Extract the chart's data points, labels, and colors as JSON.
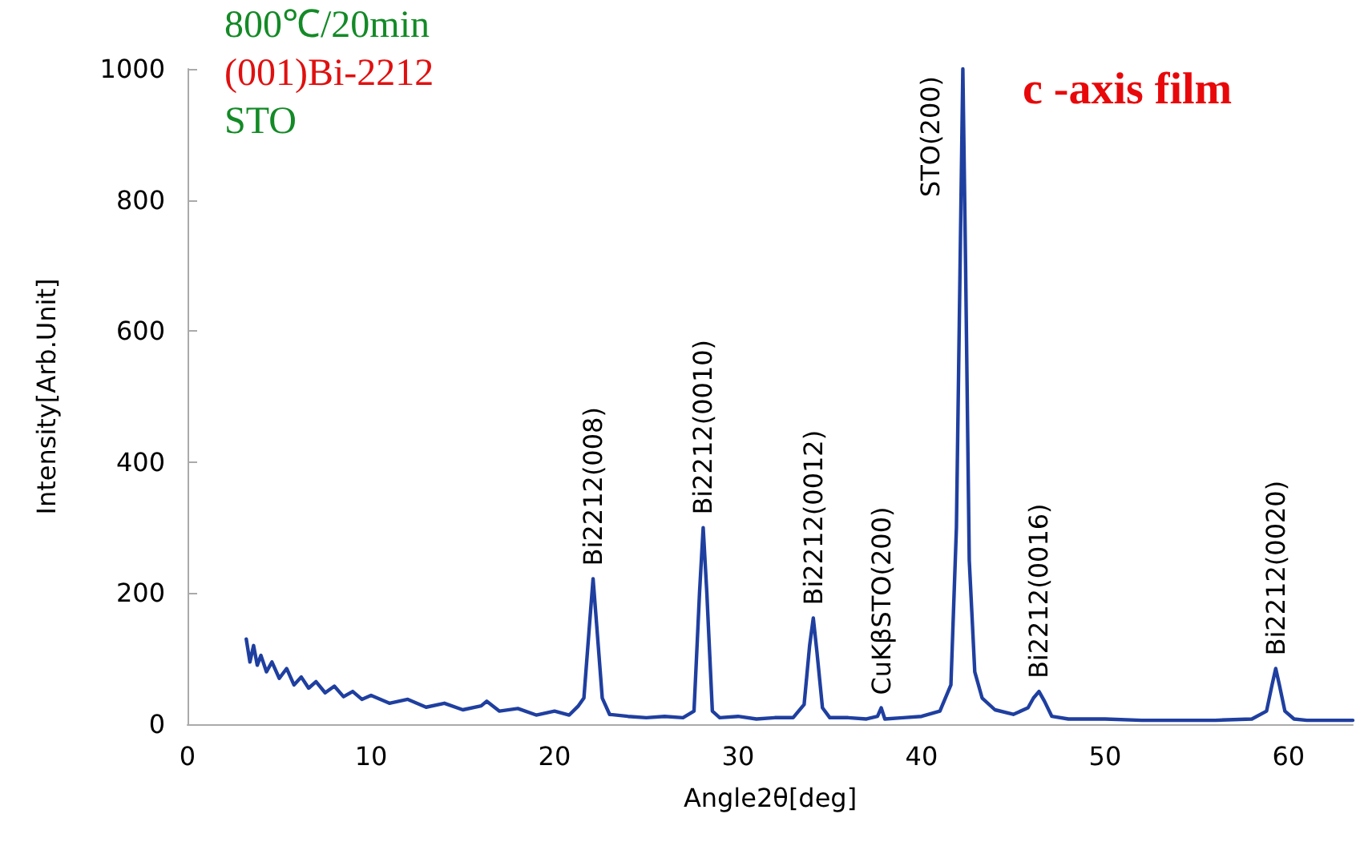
{
  "chart_data": {
    "type": "line",
    "xlabel": "Angle2θ[deg]",
    "ylabel": "Intensity[Arb.Unit]",
    "xlim": [
      0,
      63.5
    ],
    "xticks": [
      0,
      10,
      20,
      30,
      40,
      50,
      60
    ],
    "ylim": [
      0,
      1000
    ],
    "yticks": [
      0,
      200,
      400,
      600,
      800,
      1000
    ],
    "grid": false,
    "marker": "none",
    "line_style": "solid",
    "series": [
      {
        "color": "#1f3fa0",
        "x": [
          3.2,
          3.4,
          3.6,
          3.8,
          4.0,
          4.3,
          4.6,
          5.0,
          5.4,
          5.8,
          6.2,
          6.6,
          7.0,
          7.5,
          8.0,
          8.5,
          9.0,
          9.5,
          10.0,
          11.0,
          12.0,
          13.0,
          14.0,
          15.0,
          16.0,
          16.3,
          17.0,
          18.0,
          19.0,
          20.0,
          20.8,
          21.3,
          21.6,
          21.9,
          22.1,
          22.3,
          22.6,
          23.0,
          24.0,
          25.0,
          26.0,
          27.0,
          27.6,
          27.9,
          28.1,
          28.3,
          28.6,
          29.0,
          30.0,
          31.0,
          32.0,
          33.0,
          33.6,
          33.9,
          34.1,
          34.3,
          34.6,
          35.0,
          36.0,
          37.0,
          37.6,
          37.8,
          38.0,
          39.0,
          40.0,
          41.0,
          41.6,
          41.9,
          42.1,
          42.25,
          42.4,
          42.6,
          42.9,
          43.3,
          44.0,
          45.0,
          45.8,
          46.1,
          46.4,
          46.7,
          47.1,
          48.0,
          50.0,
          52.0,
          54.0,
          56.0,
          58.0,
          58.8,
          59.1,
          59.3,
          59.5,
          59.8,
          60.3,
          61.0,
          62.0,
          63.5
        ],
        "values": [
          130,
          95,
          120,
          90,
          105,
          80,
          95,
          70,
          85,
          60,
          72,
          55,
          65,
          48,
          58,
          42,
          50,
          38,
          44,
          32,
          38,
          26,
          32,
          22,
          28,
          35,
          20,
          24,
          14,
          20,
          14,
          28,
          40,
          150,
          222,
          150,
          40,
          15,
          12,
          10,
          12,
          10,
          20,
          200,
          300,
          200,
          20,
          10,
          12,
          8,
          10,
          10,
          30,
          120,
          162,
          110,
          25,
          10,
          10,
          8,
          12,
          25,
          8,
          10,
          12,
          20,
          60,
          300,
          700,
          1000,
          700,
          250,
          80,
          40,
          22,
          15,
          25,
          40,
          50,
          35,
          12,
          8,
          8,
          6,
          6,
          6,
          8,
          20,
          60,
          85,
          60,
          20,
          8,
          6,
          6,
          6
        ]
      }
    ],
    "annotations": [
      "800℃/20min",
      "(001)Bi-2212",
      "STO",
      "c -axis film",
      {
        "text": "Bi2212(008)",
        "x": 22.1,
        "y": 222
      },
      {
        "text": "Bi2212(0010)",
        "x": 28.1,
        "y": 300
      },
      {
        "text": "Bi2212(0012)",
        "x": 34.1,
        "y": 162
      },
      {
        "text": "CuKβSTO(200)",
        "x": 37.8,
        "y": 25
      },
      {
        "text": "STO(200)",
        "x": 42.25,
        "y": 1000
      },
      {
        "text": "Bi2212(0016)",
        "x": 46.4,
        "y": 50
      },
      {
        "text": "Bi2212(0020)",
        "x": 59.3,
        "y": 85
      }
    ]
  }
}
